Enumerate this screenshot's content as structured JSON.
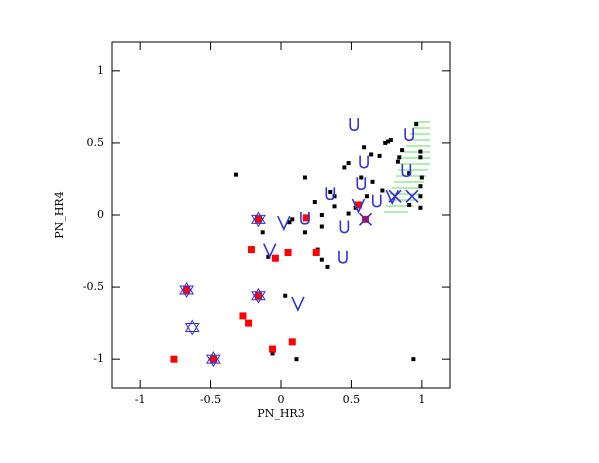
{
  "chart_data": {
    "type": "scatter",
    "x_label": "PN_HR3",
    "y_label": "PN_HR4",
    "xlim": [
      -1.2,
      1.2
    ],
    "ylim": [
      -1.2,
      1.2
    ],
    "xticks": [
      -1,
      -0.5,
      0,
      0.5,
      1
    ],
    "yticks": [
      -1,
      -0.5,
      0,
      0.5,
      1
    ],
    "series": [
      {
        "color": "#000000",
        "marker": "square",
        "x": [
          -0.32,
          0.17,
          0.06,
          0.35,
          0.38,
          0.45,
          0.48,
          0.59,
          0.64,
          0.7,
          0.74,
          0.76,
          0.78,
          0.84,
          0.86,
          0.83,
          0.91,
          0.96,
          0.99,
          0.99,
          1.0,
          0.99,
          0.99,
          0.99,
          0.91,
          0.72,
          0.65,
          0.61,
          0.57,
          0.53,
          0.48,
          0.38,
          0.29,
          0.24,
          0.29,
          0.17,
          0.08,
          -0.13,
          -0.09,
          0.26,
          0.29,
          0.33,
          0.03,
          -0.06,
          0.11,
          0.94
        ],
        "y": [
          0.28,
          0.26,
          -0.05,
          0.16,
          0.13,
          0.33,
          0.36,
          0.47,
          0.42,
          0.41,
          0.5,
          0.51,
          0.52,
          0.4,
          0.45,
          0.37,
          0.29,
          0.63,
          0.44,
          0.4,
          0.26,
          0.2,
          0.13,
          0.05,
          0.07,
          0.17,
          0.23,
          0.13,
          0.26,
          0.05,
          0.01,
          0.06,
          0.0,
          0.09,
          -0.08,
          -0.12,
          -0.03,
          -0.12,
          -0.29,
          -0.24,
          -0.31,
          -0.36,
          -0.56,
          -0.96,
          -1.0,
          -1.0
        ]
      },
      {
        "color": "#ff0000",
        "marker": "square-large",
        "x": [
          -0.76,
          -0.67,
          -0.21,
          -0.04,
          0.05,
          0.25,
          -0.27,
          -0.23,
          -0.16,
          0.08,
          -0.06,
          -0.48,
          -0.16,
          0.18,
          0.6,
          0.55
        ],
        "y": [
          -1.0,
          -0.52,
          -0.24,
          -0.3,
          -0.26,
          -0.26,
          -0.7,
          -0.75,
          -0.56,
          -0.88,
          -0.93,
          -1.0,
          -0.03,
          -0.02,
          -0.03,
          0.07
        ]
      },
      {
        "color": "#3333cc",
        "marker": "star",
        "x": [
          -0.67,
          -0.63,
          -0.48,
          -0.16,
          -0.16
        ],
        "y": [
          -0.52,
          -0.78,
          -1.0,
          -0.56,
          -0.03
        ]
      },
      {
        "color": "#3333cc",
        "marker": "u",
        "x": [
          0.52,
          0.59,
          0.57,
          0.35,
          0.45,
          0.44,
          0.17,
          0.68,
          0.91,
          0.89
        ],
        "y": [
          0.63,
          0.37,
          0.22,
          0.15,
          -0.08,
          -0.29,
          -0.02,
          0.1,
          0.56,
          0.31
        ]
      },
      {
        "color": "#3333cc",
        "marker": "v",
        "x": [
          0.02,
          -0.08,
          0.12,
          0.55,
          0.79
        ],
        "y": [
          -0.05,
          -0.24,
          -0.61,
          0.07,
          0.13
        ]
      },
      {
        "color": "#3333cc",
        "marker": "x",
        "x": [
          0.6,
          0.81,
          0.93
        ],
        "y": [
          -0.03,
          0.13,
          0.13
        ]
      }
    ]
  }
}
